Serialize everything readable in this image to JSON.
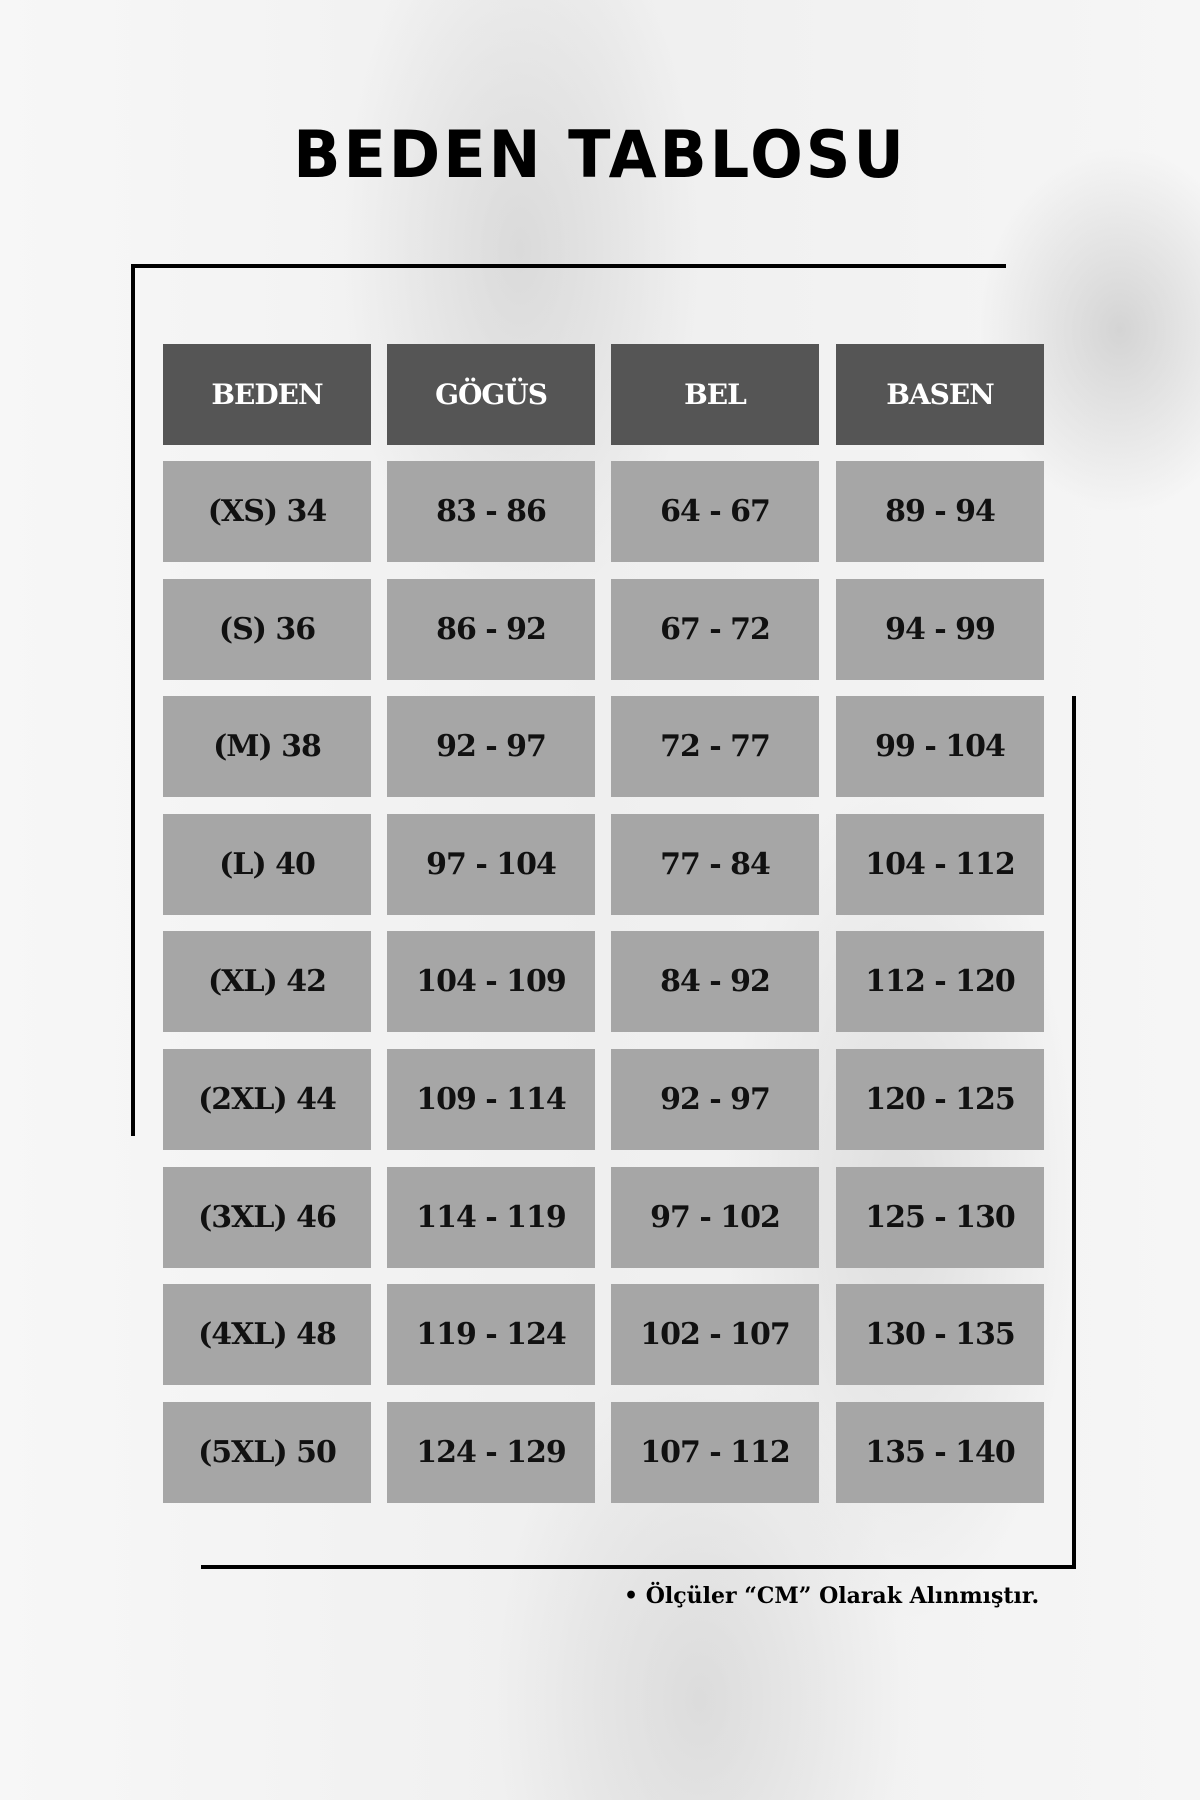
{
  "title": "BEDEN TABLOSU",
  "table": {
    "headers": [
      "BEDEN",
      "GÖGÜS",
      "BEL",
      "BASEN"
    ],
    "rows": [
      [
        "(XS) 34",
        "83 - 86",
        "64 - 67",
        "89 - 94"
      ],
      [
        "(S) 36",
        "86 - 92",
        "67 - 72",
        "94 - 99"
      ],
      [
        "(M) 38",
        "92 - 97",
        "72 - 77",
        "99 - 104"
      ],
      [
        "(L) 40",
        "97 - 104",
        "77 - 84",
        "104 - 112"
      ],
      [
        "(XL) 42",
        "104 - 109",
        "84 - 92",
        "112 - 120"
      ],
      [
        "(2XL) 44",
        "109 - 114",
        "92 - 97",
        "120 - 125"
      ],
      [
        "(3XL) 46",
        "114 - 119",
        "97 - 102",
        "125 - 130"
      ],
      [
        "(4XL) 48",
        "119 - 124",
        "102 - 107",
        "130 - 135"
      ],
      [
        "(5XL) 50",
        "124 - 129",
        "107 - 112",
        "135 - 140"
      ]
    ]
  },
  "note": "• Ölçüler “CM” Olarak Alınmıştır.",
  "colors": {
    "header_bg": "#555555",
    "cell_bg": "#a6a6a6",
    "header_text": "#ffffff",
    "frame": "#000000"
  }
}
